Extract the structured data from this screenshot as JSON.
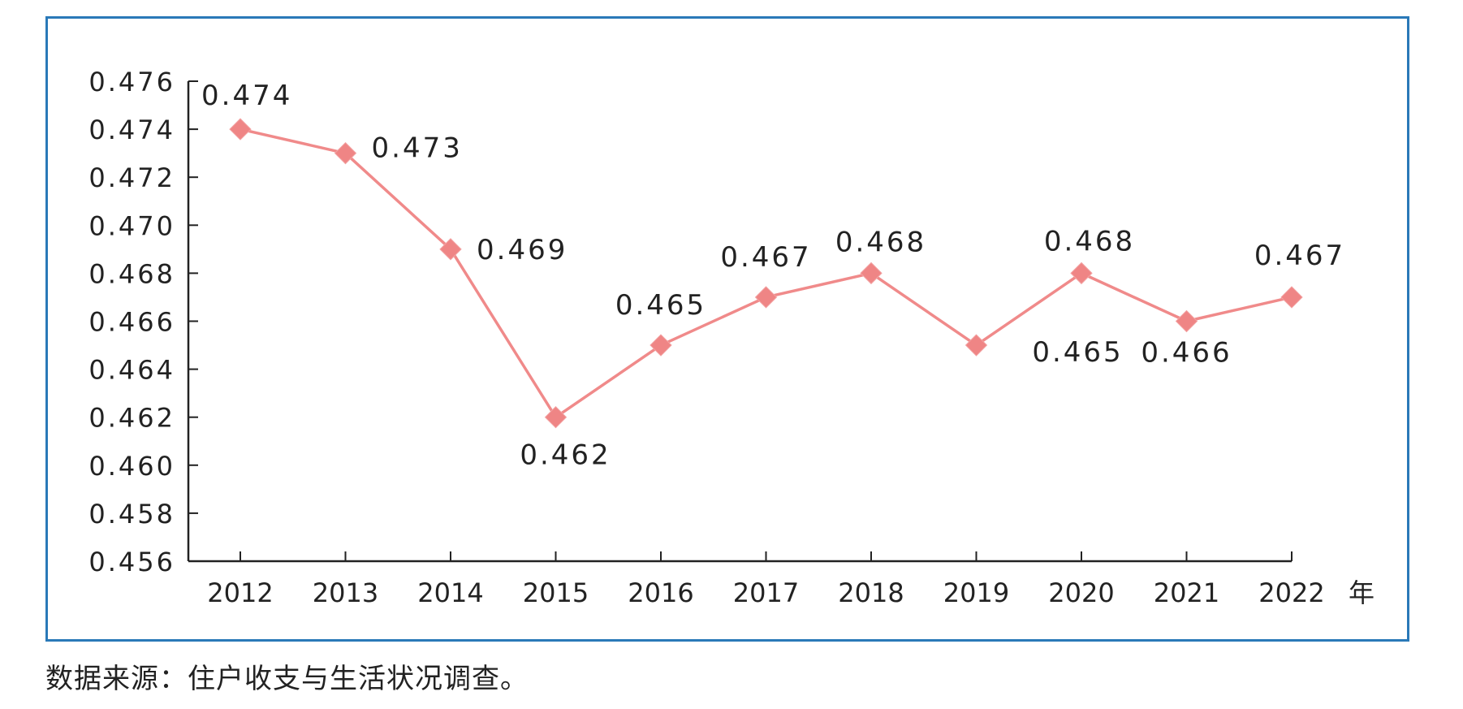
{
  "chart_data": {
    "type": "line",
    "x": [
      "2012",
      "2013",
      "2014",
      "2015",
      "2016",
      "2017",
      "2018",
      "2019",
      "2020",
      "2021",
      "2022"
    ],
    "series": [
      {
        "values": [
          0.474,
          0.473,
          0.469,
          0.462,
          0.465,
          0.467,
          0.468,
          0.465,
          0.468,
          0.466,
          0.467
        ]
      }
    ],
    "data_labels": [
      "0.474",
      "0.473",
      "0.469",
      "0.462",
      "0.465",
      "0.467",
      "0.468",
      "0.465",
      "0.468",
      "0.466",
      "0.467"
    ],
    "y_ticks": [
      "0.456",
      "0.458",
      "0.460",
      "0.462",
      "0.464",
      "0.466",
      "0.468",
      "0.470",
      "0.472",
      "0.474",
      "0.476"
    ],
    "ylim": [
      0.456,
      0.476
    ],
    "x_unit": "年",
    "grid": false,
    "marker": "diamond",
    "colors": {
      "line": "#f08a8a",
      "marker": "#ef8585",
      "axis": "#222222",
      "frame": "#2a79b8"
    }
  },
  "source_note": "数据来源：住户收支与生活状况调查。"
}
